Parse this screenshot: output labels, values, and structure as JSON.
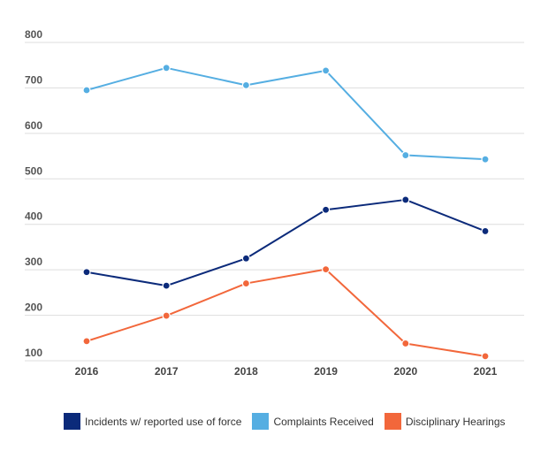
{
  "chart_data": {
    "type": "line",
    "title": "",
    "xlabel": "",
    "ylabel": "",
    "x": [
      "2016",
      "2017",
      "2018",
      "2019",
      "2020",
      "2021"
    ],
    "ylim": [
      100,
      800
    ],
    "yticks": [
      "800",
      "700",
      "600",
      "500",
      "400",
      "300",
      "200",
      "100"
    ],
    "grid": true,
    "legend_position": "bottom",
    "series": [
      {
        "name": "Incidents w/ reported use of force",
        "color": "#0b2a7a",
        "values": [
          295,
          265,
          325,
          432,
          454,
          385
        ]
      },
      {
        "name": "Complaints Received",
        "color": "#55aee2",
        "values": [
          695,
          744,
          706,
          738,
          552,
          543
        ]
      },
      {
        "name": "Disciplinary Hearings",
        "color": "#f2673b",
        "values": [
          143,
          199,
          270,
          301,
          138,
          110
        ]
      }
    ]
  }
}
